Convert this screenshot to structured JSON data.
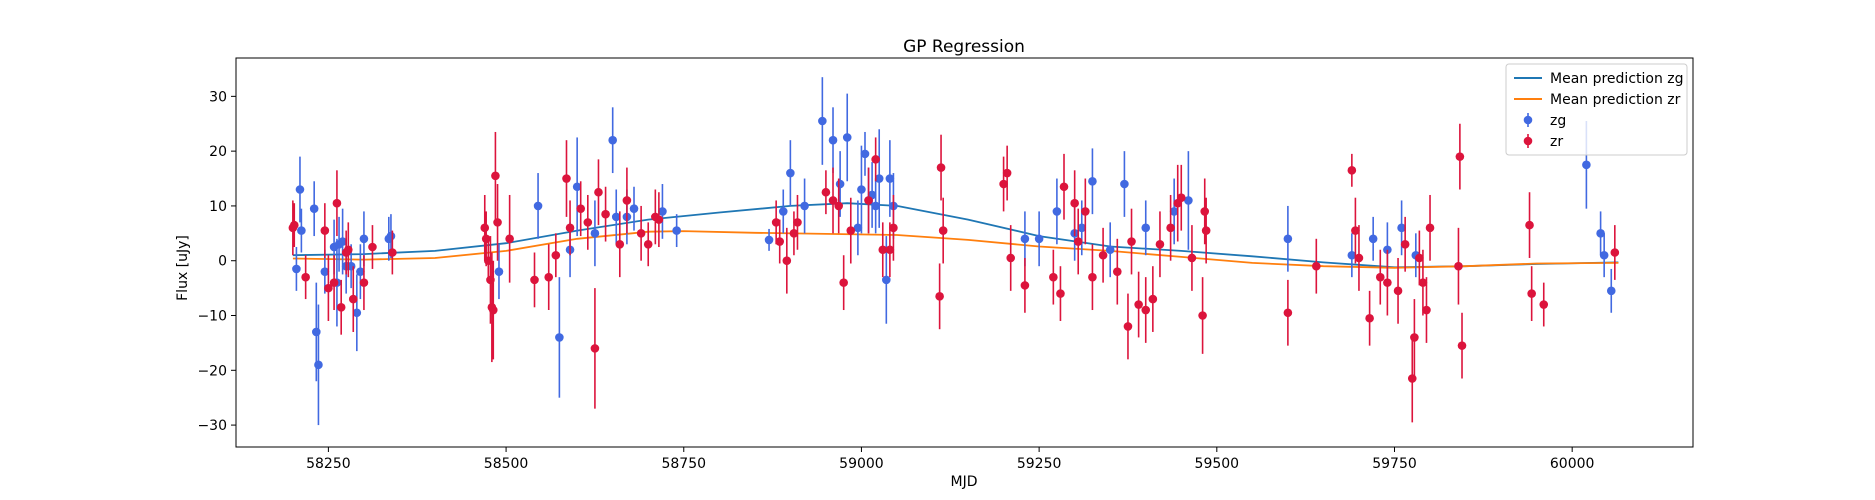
{
  "chart_data": {
    "type": "scatter",
    "title": "GP Regression",
    "xlabel": "MJD",
    "ylabel": "Flux [uJy]",
    "xlim": [
      58120,
      60170
    ],
    "ylim": [
      -34,
      37
    ],
    "xticks": [
      58250,
      58500,
      58750,
      59000,
      59250,
      59500,
      59750,
      60000
    ],
    "yticks": [
      -30,
      -20,
      -10,
      0,
      10,
      20,
      30
    ],
    "grid": false,
    "legend_position": "top-right",
    "colors": {
      "zg": "#4169e1",
      "zr": "#dc143c",
      "mean_zg": "#1f77b4",
      "mean_zr": "#ff7f0e"
    },
    "mean_series": [
      {
        "name": "Mean prediction zg",
        "color": "#1f77b4",
        "x": [
          58200,
          58300,
          58400,
          58500,
          58600,
          58700,
          58800,
          58900,
          58980,
          59050,
          59150,
          59250,
          59350,
          59450,
          59550,
          59650,
          59750,
          59850,
          59950,
          60065
        ],
        "y": [
          1.0,
          1.2,
          1.8,
          3.2,
          5.5,
          7.5,
          8.8,
          10.0,
          10.5,
          10.0,
          7.5,
          4.5,
          2.6,
          1.8,
          0.8,
          -0.3,
          -1.2,
          -1.0,
          -0.6,
          -0.3
        ]
      },
      {
        "name": "Mean prediction zr",
        "color": "#ff7f0e",
        "x": [
          58200,
          58300,
          58400,
          58500,
          58600,
          58700,
          58750,
          58850,
          58950,
          59050,
          59150,
          59250,
          59350,
          59450,
          59550,
          59650,
          59750,
          59850,
          59950,
          60065
        ],
        "y": [
          0.4,
          0.2,
          0.5,
          1.8,
          4.0,
          5.3,
          5.4,
          5.1,
          4.9,
          4.7,
          3.8,
          2.6,
          1.8,
          0.7,
          -0.4,
          -1.0,
          -1.3,
          -1.0,
          -0.5,
          -0.4
        ]
      }
    ],
    "points": [
      {
        "name": "zg",
        "color": "#4169e1",
        "x": [
          58205,
          58210,
          58212,
          58230,
          58233,
          58236,
          58245,
          58258,
          58262,
          58265,
          58270,
          58275,
          58282,
          58290,
          58295,
          58300,
          58335,
          58338,
          58490,
          58545,
          58575,
          58590,
          58600,
          58625,
          58650,
          58655,
          58670,
          58680,
          58720,
          58740,
          58870,
          58890,
          58900,
          58920,
          58945,
          58960,
          58970,
          58980,
          58995,
          59000,
          59005,
          59010,
          59015,
          59020,
          59025,
          59035,
          59040,
          59045,
          59230,
          59250,
          59275,
          59300,
          59310,
          59325,
          59350,
          59370,
          59400,
          59440,
          59460,
          59600,
          59690,
          59720,
          59740,
          59760,
          59780,
          60020,
          60040,
          60045,
          60055
        ],
        "y": [
          -1.5,
          13,
          5.5,
          9.5,
          -13,
          -19,
          -2,
          2.5,
          -4,
          3,
          3.5,
          -1,
          -1,
          -9.5,
          -2,
          4,
          4,
          4.5,
          -2,
          10,
          -14,
          2,
          13.5,
          5,
          22,
          8,
          8,
          9.5,
          9,
          5.5,
          3.8,
          9,
          16,
          10,
          25.5,
          22,
          14,
          22.5,
          6,
          13,
          19.5,
          11,
          12,
          10,
          15,
          -3.5,
          15,
          10,
          4,
          4,
          9,
          5,
          6,
          14.5,
          2,
          14,
          6,
          9,
          11,
          4,
          1,
          4,
          2,
          6,
          1,
          17.5,
          5,
          1,
          -5.5
        ],
        "err": [
          4,
          6,
          4,
          5,
          9,
          11,
          4,
          5,
          8,
          5,
          6,
          5,
          4,
          7,
          5,
          5,
          4,
          4,
          5,
          6,
          11,
          5,
          9,
          6,
          6,
          5,
          5,
          4,
          5,
          3,
          2,
          4,
          6,
          5,
          8,
          6,
          6,
          8,
          5,
          8,
          4,
          6,
          6,
          5,
          9,
          8,
          7,
          6,
          5,
          5,
          6,
          5,
          5,
          6,
          5,
          6,
          5,
          6,
          9,
          6,
          4,
          4,
          5,
          5,
          4,
          8,
          4,
          4,
          4
        ]
      },
      {
        "name": "zr",
        "color": "#dc143c",
        "x": [
          58200,
          58202,
          58218,
          58245,
          58250,
          58258,
          58262,
          58268,
          58275,
          58278,
          58285,
          58300,
          58312,
          58340,
          58470,
          58472,
          58475,
          58478,
          58480,
          58482,
          58485,
          58488,
          58505,
          58540,
          58560,
          58570,
          58585,
          58590,
          58605,
          58615,
          58625,
          58630,
          58640,
          58660,
          58670,
          58690,
          58700,
          58710,
          58715,
          58880,
          58885,
          58895,
          58905,
          58910,
          58950,
          58960,
          58968,
          58975,
          58985,
          59010,
          59020,
          59030,
          59040,
          59045,
          59110,
          59112,
          59115,
          59200,
          59205,
          59210,
          59230,
          59270,
          59280,
          59285,
          59300,
          59305,
          59315,
          59325,
          59340,
          59360,
          59375,
          59380,
          59390,
          59400,
          59410,
          59420,
          59435,
          59445,
          59450,
          59465,
          59480,
          59483,
          59485,
          59600,
          59640,
          59690,
          59695,
          59700,
          59715,
          59730,
          59740,
          59755,
          59765,
          59775,
          59778,
          59785,
          59790,
          59795,
          59800,
          59840,
          59842,
          59845,
          59940,
          59943,
          59960,
          60060
        ],
        "y": [
          6,
          6.5,
          -3,
          5.5,
          -5,
          -4,
          10.5,
          -8.5,
          1.5,
          2,
          -7,
          -4,
          2.5,
          1.5,
          6,
          4,
          0,
          -3.5,
          -8.5,
          -9,
          15.5,
          7,
          4,
          -3.5,
          -3,
          1,
          15,
          6,
          9.5,
          7,
          -16,
          12.5,
          8.5,
          3,
          11,
          5,
          3,
          8,
          7.5,
          7,
          3.5,
          0,
          5,
          7,
          12.5,
          11,
          10,
          -4,
          5.5,
          11,
          18.5,
          2,
          2,
          6,
          -6.5,
          17,
          5.5,
          14,
          16,
          0.5,
          -4.5,
          -3,
          -6,
          13.5,
          10.5,
          3.5,
          9,
          -3,
          1,
          -2,
          -12,
          3.5,
          -8,
          -9,
          -7,
          3,
          6,
          10.5,
          11.5,
          0.5,
          -10,
          9,
          5.5,
          -9.5,
          -1,
          16.5,
          5.5,
          0.5,
          -10.5,
          -3,
          -4,
          -5.5,
          3,
          -21.5,
          -14,
          0.5,
          -4,
          -9,
          6,
          -1,
          19,
          -15.5,
          6.5,
          -6,
          -8,
          1.5
        ],
        "err": [
          5,
          4,
          4,
          5,
          6,
          5,
          6,
          5,
          4,
          5,
          6,
          5,
          4,
          4,
          6,
          5,
          4,
          8,
          10,
          9,
          8,
          7,
          8,
          5,
          6,
          4,
          7,
          5,
          5,
          5,
          11,
          6,
          5,
          6,
          6,
          5,
          4,
          5,
          5,
          4,
          4,
          6,
          4,
          5,
          4,
          6,
          5,
          5,
          6,
          6,
          4,
          5,
          5,
          6,
          6,
          6,
          6,
          5,
          5,
          6,
          5,
          5,
          5,
          6,
          6,
          6,
          6,
          6,
          5,
          6,
          6,
          6,
          6,
          6,
          6,
          6,
          6,
          7,
          6,
          6,
          7,
          6,
          6,
          6,
          5,
          3,
          6,
          6,
          5,
          5,
          6,
          6,
          5,
          8,
          7,
          5,
          6,
          6,
          6,
          7,
          6,
          6,
          6,
          5,
          4,
          5
        ]
      }
    ],
    "legend": [
      {
        "label": "Mean prediction zg",
        "kind": "line",
        "color": "#1f77b4"
      },
      {
        "label": "Mean prediction zr",
        "kind": "line",
        "color": "#ff7f0e"
      },
      {
        "label": "zg",
        "kind": "errorbar",
        "color": "#4169e1"
      },
      {
        "label": "zr",
        "kind": "errorbar",
        "color": "#dc143c"
      }
    ]
  }
}
